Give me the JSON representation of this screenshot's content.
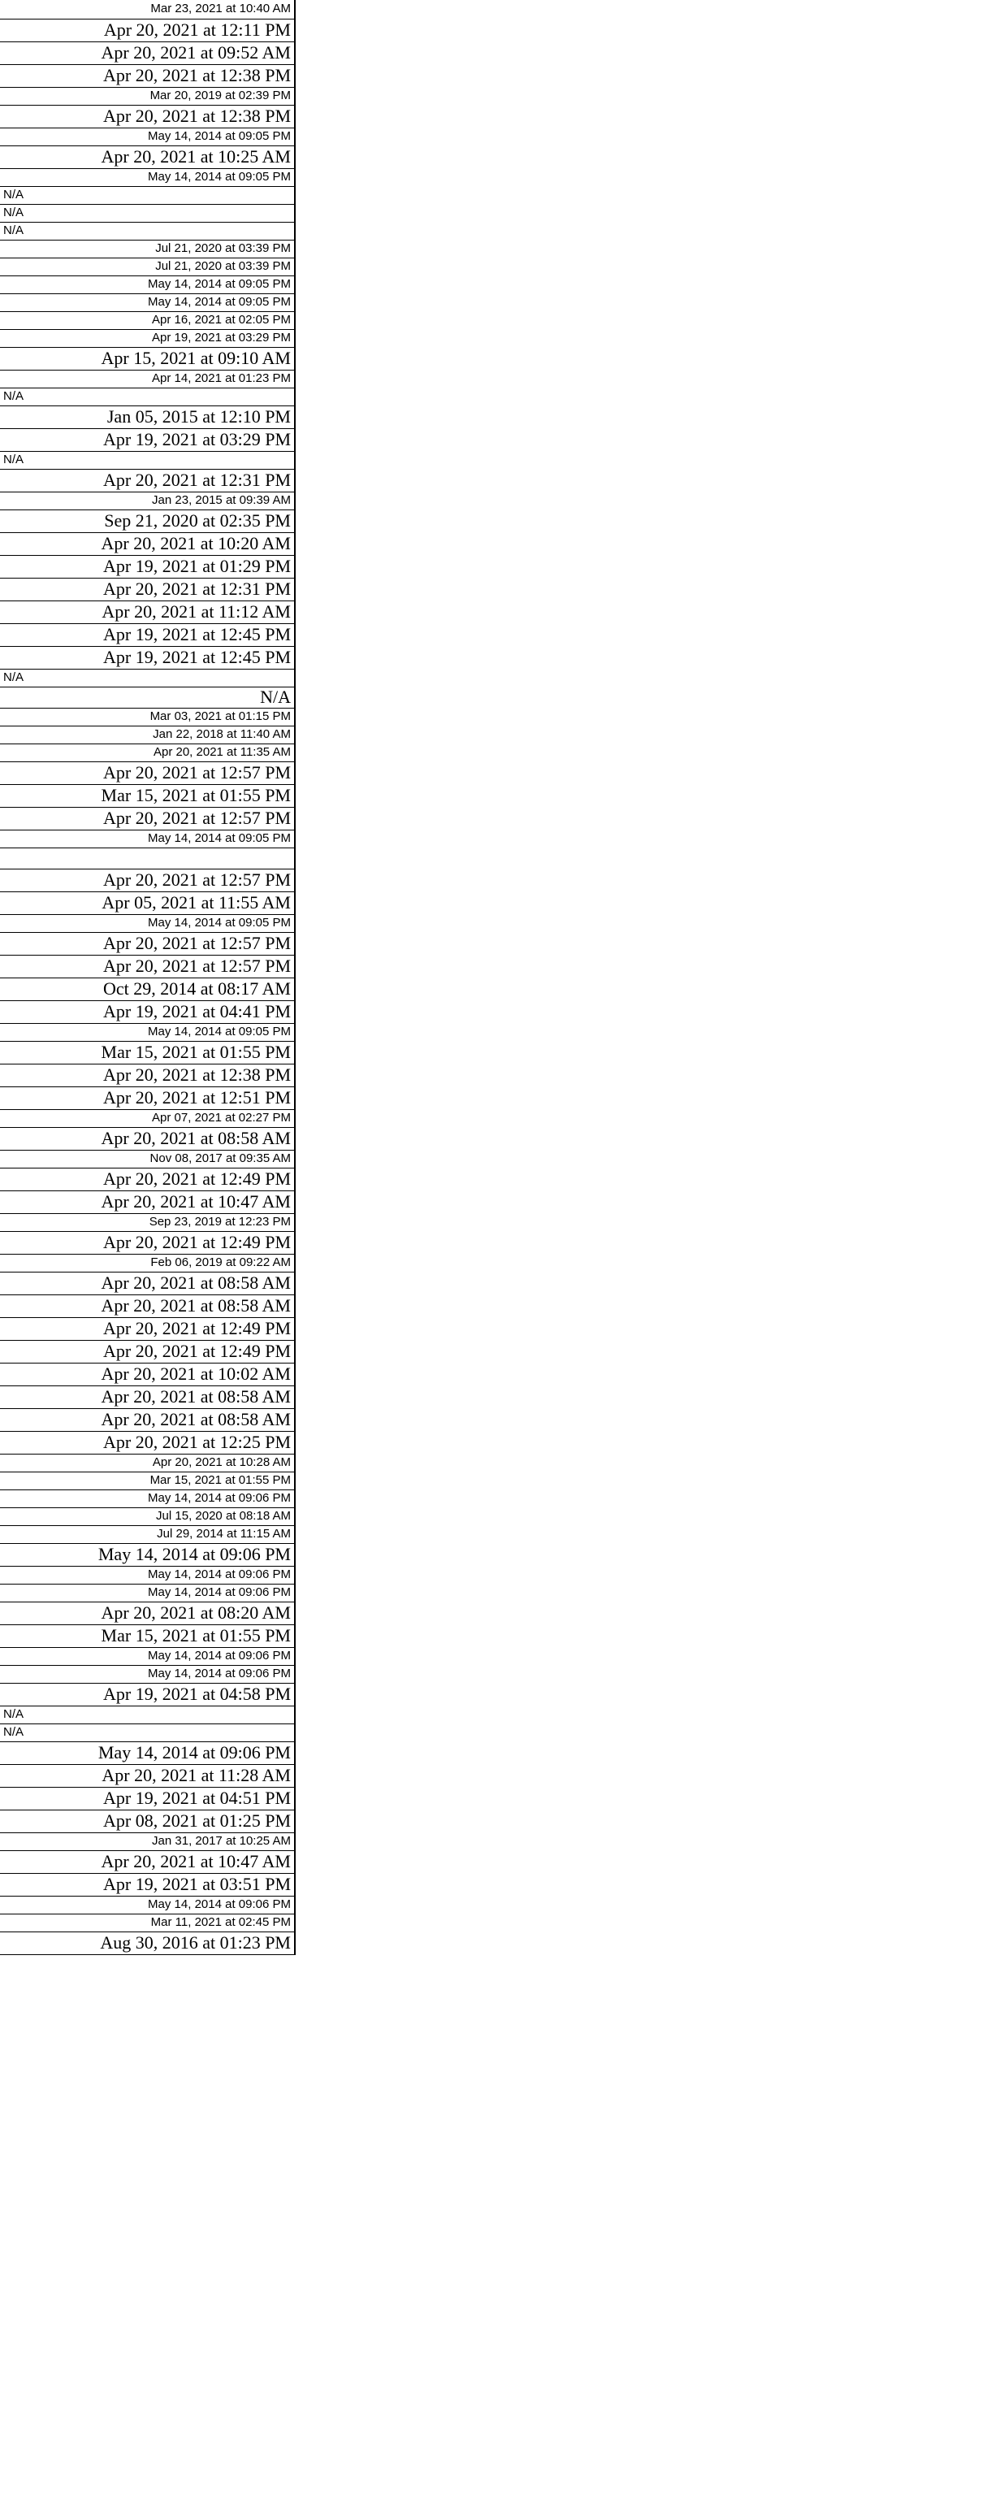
{
  "rows": [
    "Mar 23, 2021 at 10:40 AM",
    "Apr 20, 2021 at 12:11 PM",
    "Apr 20, 2021 at 09:52 AM",
    "Apr 20, 2021 at 12:38 PM",
    "Mar 20, 2019 at 02:39 PM",
    "Apr 20, 2021 at 12:38 PM",
    "May 14, 2014 at 09:05 PM",
    "Apr 20, 2021 at 10:25 AM",
    "May 14, 2014 at 09:05 PM",
    "N/A",
    "N/A",
    "N/A",
    "Jul 21, 2020 at 03:39 PM",
    "Jul 21, 2020 at 03:39 PM",
    "May 14, 2014 at 09:05 PM",
    "May 14, 2014 at 09:05 PM",
    "Apr 16, 2021 at 02:05 PM",
    "Apr 19, 2021 at 03:29 PM",
    "Apr 15, 2021 at 09:10 AM",
    "Apr 14, 2021 at 01:23 PM",
    "N/A",
    "Jan 05, 2015 at 12:10 PM",
    "Apr 19, 2021 at 03:29 PM",
    "N/A",
    "Apr 20, 2021 at 12:31 PM",
    "Jan 23, 2015 at 09:39 AM",
    "Sep 21, 2020 at 02:35 PM",
    "Apr 20, 2021 at 10:20 AM",
    "Apr 19, 2021 at 01:29 PM",
    "Apr 20, 2021 at 12:31 PM",
    "Apr 20, 2021 at 11:12 AM",
    "Apr 19, 2021 at 12:45 PM",
    "Apr 19, 2021 at 12:45 PM",
    "N/A",
    "N/A",
    "Mar 03, 2021 at 01:15 PM",
    "Jan 22, 2018 at 11:40 AM",
    "Apr 20, 2021 at 11:35 AM",
    "Apr 20, 2021 at 12:57 PM",
    "Mar 15, 2021 at 01:55 PM",
    "Apr 20, 2021 at 12:57 PM",
    "May 14, 2014 at 09:05 PM",
    "",
    "Apr 20, 2021 at 12:57 PM",
    "Apr 05, 2021 at 11:55 AM",
    "May 14, 2014 at 09:05 PM",
    "Apr 20, 2021 at 12:57 PM",
    "Apr 20, 2021 at 12:57 PM",
    "Oct 29, 2014 at 08:17 AM",
    "Apr 19, 2021 at 04:41 PM",
    "May 14, 2014 at 09:05 PM",
    "Mar 15, 2021 at 01:55 PM",
    "Apr 20, 2021 at 12:38 PM",
    "Apr 20, 2021 at 12:51 PM",
    "Apr 07, 2021 at 02:27 PM",
    "Apr 20, 2021 at 08:58 AM",
    "Nov 08, 2017 at 09:35 AM",
    "Apr 20, 2021 at 12:49 PM",
    "Apr 20, 2021 at 10:47 AM",
    "Sep 23, 2019 at 12:23 PM",
    "Apr 20, 2021 at 12:49 PM",
    "Feb 06, 2019 at 09:22 AM",
    "Apr 20, 2021 at 08:58 AM",
    "Apr 20, 2021 at 08:58 AM",
    "Apr 20, 2021 at 12:49 PM",
    "Apr 20, 2021 at 12:49 PM",
    "Apr 20, 2021 at 10:02 AM",
    "Apr 20, 2021 at 08:58 AM",
    "Apr 20, 2021 at 08:58 AM",
    "Apr 20, 2021 at 12:25 PM",
    "Apr 20, 2021 at 10:28 AM",
    "Mar 15, 2021 at 01:55 PM",
    "May 14, 2014 at 09:06 PM",
    "Jul 15, 2020 at 08:18 AM",
    "Jul 29, 2014 at 11:15 AM",
    "May 14, 2014 at 09:06 PM",
    "May 14, 2014 at 09:06 PM",
    "May 14, 2014 at 09:06 PM",
    "Apr 20, 2021 at 08:20 AM",
    "Mar 15, 2021 at 01:55 PM",
    "May 14, 2014 at 09:06 PM",
    "May 14, 2014 at 09:06 PM",
    "Apr 19, 2021 at 04:58 PM",
    "N/A",
    "N/A",
    "May 14, 2014 at 09:06 PM",
    "Apr 20, 2021 at 11:28 AM",
    "Apr 19, 2021 at 04:51 PM",
    "Apr 08, 2021 at 01:25 PM",
    "Jan 31, 2017 at 10:25 AM",
    "Apr 20, 2021 at 10:47 AM",
    "Apr 19, 2021 at 03:51 PM",
    "May 14, 2014 at 09:06 PM",
    "Mar 11, 2021 at 02:45 PM",
    "Aug 30, 2016 at 01:23 PM"
  ]
}
